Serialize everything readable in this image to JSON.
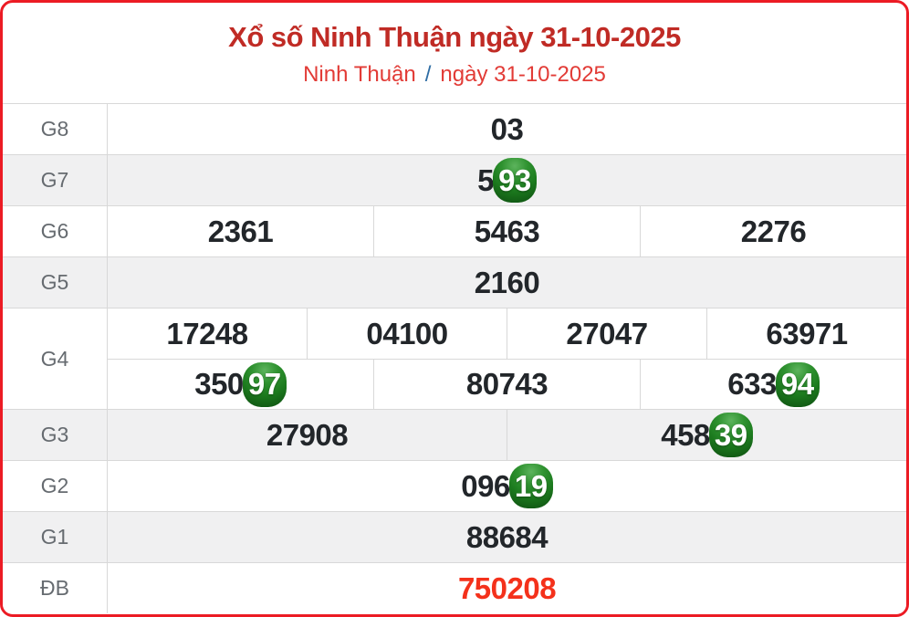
{
  "page": {
    "title": "Xổ số Ninh Thuận ngày 31-10-2025",
    "subtitle": {
      "region": "Ninh Thuận",
      "separator": "/",
      "date": "ngày 31-10-2025"
    }
  },
  "colors": {
    "panel_border": "#ec1b24",
    "title_red": "#c02b25",
    "subtitle_red": "#e23b36",
    "separator_blue": "#2e6da4",
    "value_dark": "#22262a",
    "label_gray": "#666b70",
    "row_shaded_bg": "#f0f0f1",
    "divider_gray": "#d8d8d8",
    "special_red": "#f4311b",
    "badge_green_light": "#2f9230",
    "badge_green_dark": "#0d4c10"
  },
  "results": {
    "rows": [
      {
        "label": "G8",
        "shaded": false,
        "special": false,
        "lines": [
          [
            {
              "text": "03",
              "highlight": ""
            }
          ]
        ]
      },
      {
        "label": "G7",
        "shaded": true,
        "special": false,
        "lines": [
          [
            {
              "text": "593",
              "highlight": "93"
            }
          ]
        ]
      },
      {
        "label": "G6",
        "shaded": false,
        "special": false,
        "lines": [
          [
            {
              "text": "2361",
              "highlight": ""
            },
            {
              "text": "5463",
              "highlight": ""
            },
            {
              "text": "2276",
              "highlight": ""
            }
          ]
        ]
      },
      {
        "label": "G5",
        "shaded": true,
        "special": false,
        "lines": [
          [
            {
              "text": "2160",
              "highlight": ""
            }
          ]
        ]
      },
      {
        "label": "G4",
        "shaded": false,
        "special": false,
        "lines": [
          [
            {
              "text": "17248",
              "highlight": ""
            },
            {
              "text": "04100",
              "highlight": ""
            },
            {
              "text": "27047",
              "highlight": ""
            },
            {
              "text": "63971",
              "highlight": ""
            }
          ],
          [
            {
              "text": "35097",
              "highlight": "97"
            },
            {
              "text": "80743",
              "highlight": ""
            },
            {
              "text": "63394",
              "highlight": "94"
            }
          ]
        ]
      },
      {
        "label": "G3",
        "shaded": true,
        "special": false,
        "lines": [
          [
            {
              "text": "27908",
              "highlight": ""
            },
            {
              "text": "45839",
              "highlight": "39"
            }
          ]
        ]
      },
      {
        "label": "G2",
        "shaded": false,
        "special": false,
        "lines": [
          [
            {
              "text": "09619",
              "highlight": "19"
            }
          ]
        ]
      },
      {
        "label": "G1",
        "shaded": true,
        "special": false,
        "lines": [
          [
            {
              "text": "88684",
              "highlight": ""
            }
          ]
        ]
      },
      {
        "label": "ĐB",
        "shaded": false,
        "special": true,
        "lines": [
          [
            {
              "text": "750208",
              "highlight": ""
            }
          ]
        ]
      }
    ]
  }
}
